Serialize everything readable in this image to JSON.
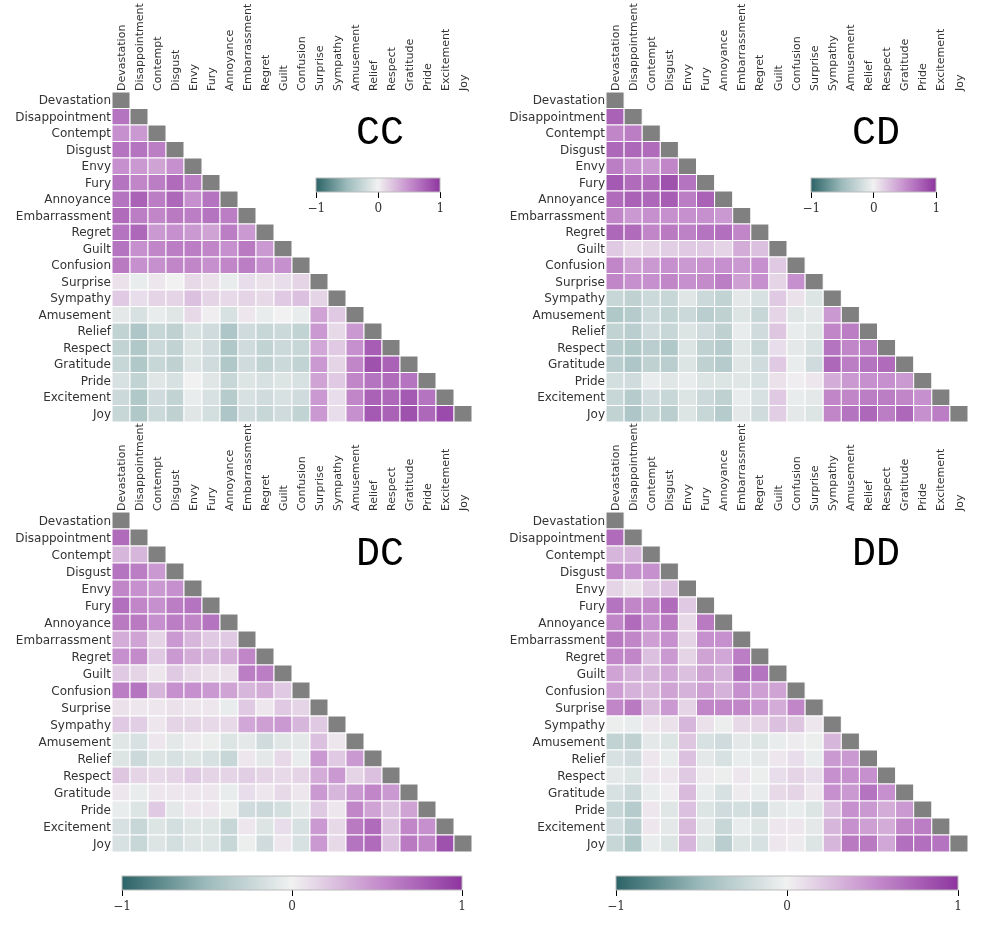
{
  "chart_data": [
    {
      "type": "heatmap",
      "title": "CC",
      "categories": [
        "Devastation",
        "Disappointment",
        "Contempt",
        "Disgust",
        "Envy",
        "Fury",
        "Annoyance",
        "Embarrassment",
        "Regret",
        "Guilt",
        "Confusion",
        "Surprise",
        "Sympathy",
        "Amusement",
        "Relief",
        "Respect",
        "Gratitude",
        "Pride",
        "Excitement",
        "Joy"
      ],
      "y_categories": [
        "Devastation",
        "Disappointment",
        "Contempt",
        "Disgust",
        "Envy",
        "Fury",
        "Annoyance",
        "Embarrassment",
        "Regret",
        "Guilt",
        "Confusion",
        "Surprise",
        "Sympathy",
        "Amusement",
        "Relief",
        "Respect",
        "Gratitude",
        "Pride",
        "Excitement",
        "Joy"
      ],
      "clim": [
        -1,
        1
      ],
      "cticks": [
        -1,
        0,
        1
      ],
      "cells": [
        [
          null,
          null,
          null,
          null,
          null,
          null,
          null,
          null,
          null,
          null,
          null,
          null,
          null,
          null,
          null,
          null,
          null,
          null,
          null,
          null
        ],
        [
          0.65,
          null,
          null,
          null,
          null,
          null,
          null,
          null,
          null,
          null,
          null,
          null,
          null,
          null,
          null,
          null,
          null,
          null,
          null,
          null
        ],
        [
          0.5,
          0.45,
          null,
          null,
          null,
          null,
          null,
          null,
          null,
          null,
          null,
          null,
          null,
          null,
          null,
          null,
          null,
          null,
          null,
          null
        ],
        [
          0.65,
          0.65,
          0.6,
          null,
          null,
          null,
          null,
          null,
          null,
          null,
          null,
          null,
          null,
          null,
          null,
          null,
          null,
          null,
          null,
          null
        ],
        [
          0.5,
          0.45,
          0.4,
          0.5,
          null,
          null,
          null,
          null,
          null,
          null,
          null,
          null,
          null,
          null,
          null,
          null,
          null,
          null,
          null,
          null
        ],
        [
          0.65,
          0.55,
          0.6,
          0.7,
          0.6,
          null,
          null,
          null,
          null,
          null,
          null,
          null,
          null,
          null,
          null,
          null,
          null,
          null,
          null,
          null
        ],
        [
          0.65,
          0.75,
          0.6,
          0.72,
          0.5,
          0.65,
          null,
          null,
          null,
          null,
          null,
          null,
          null,
          null,
          null,
          null,
          null,
          null,
          null,
          null
        ],
        [
          0.7,
          0.6,
          0.55,
          0.62,
          0.6,
          0.65,
          0.6,
          null,
          null,
          null,
          null,
          null,
          null,
          null,
          null,
          null,
          null,
          null,
          null,
          null
        ],
        [
          0.65,
          0.72,
          0.45,
          0.5,
          0.45,
          0.4,
          0.6,
          0.45,
          null,
          null,
          null,
          null,
          null,
          null,
          null,
          null,
          null,
          null,
          null,
          null
        ],
        [
          0.65,
          0.5,
          0.55,
          0.6,
          0.6,
          0.55,
          0.5,
          0.62,
          0.45,
          null,
          null,
          null,
          null,
          null,
          null,
          null,
          null,
          null,
          null,
          null
        ],
        [
          0.62,
          0.5,
          0.5,
          0.55,
          0.55,
          0.5,
          0.55,
          0.6,
          0.5,
          0.5,
          null,
          null,
          null,
          null,
          null,
          null,
          null,
          null,
          null,
          null
        ],
        [
          0.08,
          -0.05,
          0.05,
          0.0,
          0.12,
          0.08,
          -0.05,
          0.1,
          0.08,
          0.1,
          0.15,
          null,
          null,
          null,
          null,
          null,
          null,
          null,
          null,
          null
        ],
        [
          0.2,
          0.1,
          0.15,
          0.15,
          0.25,
          0.15,
          0.12,
          0.15,
          0.12,
          0.2,
          0.25,
          0.15,
          null,
          null,
          null,
          null,
          null,
          null,
          null,
          null
        ],
        [
          -0.08,
          -0.15,
          -0.05,
          -0.1,
          0.12,
          0.02,
          -0.15,
          0.05,
          -0.05,
          0.0,
          -0.05,
          0.4,
          0.2,
          null,
          null,
          null,
          null,
          null,
          null,
          null
        ],
        [
          -0.28,
          -0.4,
          -0.25,
          -0.3,
          -0.15,
          -0.2,
          -0.4,
          -0.2,
          -0.25,
          -0.22,
          -0.28,
          0.45,
          0.12,
          0.45,
          null,
          null,
          null,
          null,
          null,
          null
        ],
        [
          -0.28,
          -0.38,
          -0.22,
          -0.28,
          -0.12,
          -0.2,
          -0.38,
          -0.2,
          -0.28,
          -0.22,
          -0.25,
          0.38,
          0.2,
          0.5,
          0.78,
          null,
          null,
          null,
          null,
          null
        ],
        [
          -0.25,
          -0.38,
          -0.25,
          -0.3,
          -0.12,
          -0.2,
          -0.38,
          -0.2,
          -0.28,
          -0.22,
          -0.28,
          0.45,
          0.15,
          0.55,
          0.85,
          0.75,
          null,
          null,
          null,
          null
        ],
        [
          -0.15,
          -0.28,
          -0.1,
          -0.15,
          0.0,
          -0.1,
          -0.25,
          -0.12,
          -0.15,
          -0.12,
          -0.15,
          0.4,
          0.2,
          0.55,
          0.65,
          0.7,
          0.65,
          null,
          null,
          null
        ],
        [
          -0.22,
          -0.38,
          -0.2,
          -0.28,
          -0.05,
          -0.15,
          -0.35,
          -0.15,
          -0.2,
          -0.15,
          -0.2,
          0.45,
          0.1,
          0.55,
          0.75,
          0.72,
          0.8,
          0.65,
          null,
          null
        ],
        [
          -0.25,
          -0.38,
          -0.22,
          -0.3,
          -0.1,
          -0.18,
          -0.4,
          -0.2,
          -0.25,
          -0.2,
          -0.28,
          0.45,
          0.1,
          0.5,
          0.8,
          0.75,
          0.85,
          0.72,
          0.88,
          null
        ]
      ]
    },
    {
      "type": "heatmap",
      "title": "CD",
      "categories": [
        "Devastation",
        "Disappointment",
        "Contempt",
        "Disgust",
        "Envy",
        "Fury",
        "Annoyance",
        "Embarrassment",
        "Regret",
        "Guilt",
        "Confusion",
        "Surprise",
        "Sympathy",
        "Amusement",
        "Relief",
        "Respect",
        "Gratitude",
        "Pride",
        "Excitement",
        "Joy"
      ],
      "y_categories": [
        "Devastation",
        "Disappointment",
        "Contempt",
        "Disgust",
        "Envy",
        "Fury",
        "Annoyance",
        "Embarrassment",
        "Regret",
        "Guilt",
        "Confusion",
        "Surprise",
        "Sympathy",
        "Amusement",
        "Relief",
        "Respect",
        "Gratitude",
        "Pride",
        "Excitement",
        "Joy"
      ],
      "clim": [
        -1,
        1
      ],
      "cticks": [
        -1,
        0,
        1
      ],
      "cells": [
        [
          null,
          null,
          null,
          null,
          null,
          null,
          null,
          null,
          null,
          null,
          null,
          null,
          null,
          null,
          null,
          null,
          null,
          null,
          null,
          null
        ],
        [
          0.75,
          null,
          null,
          null,
          null,
          null,
          null,
          null,
          null,
          null,
          null,
          null,
          null,
          null,
          null,
          null,
          null,
          null,
          null,
          null
        ],
        [
          0.55,
          0.6,
          null,
          null,
          null,
          null,
          null,
          null,
          null,
          null,
          null,
          null,
          null,
          null,
          null,
          null,
          null,
          null,
          null,
          null
        ],
        [
          0.72,
          0.72,
          0.7,
          null,
          null,
          null,
          null,
          null,
          null,
          null,
          null,
          null,
          null,
          null,
          null,
          null,
          null,
          null,
          null,
          null
        ],
        [
          0.6,
          0.5,
          0.45,
          0.55,
          null,
          null,
          null,
          null,
          null,
          null,
          null,
          null,
          null,
          null,
          null,
          null,
          null,
          null,
          null,
          null
        ],
        [
          0.8,
          0.7,
          0.7,
          0.85,
          0.65,
          null,
          null,
          null,
          null,
          null,
          null,
          null,
          null,
          null,
          null,
          null,
          null,
          null,
          null,
          null
        ],
        [
          0.7,
          0.75,
          0.72,
          0.78,
          0.6,
          0.75,
          null,
          null,
          null,
          null,
          null,
          null,
          null,
          null,
          null,
          null,
          null,
          null,
          null,
          null
        ],
        [
          0.55,
          0.45,
          0.5,
          0.5,
          0.5,
          0.5,
          0.45,
          null,
          null,
          null,
          null,
          null,
          null,
          null,
          null,
          null,
          null,
          null,
          null,
          null
        ],
        [
          0.72,
          0.7,
          0.55,
          0.62,
          0.58,
          0.65,
          0.68,
          0.55,
          null,
          null,
          null,
          null,
          null,
          null,
          null,
          null,
          null,
          null,
          null,
          null
        ],
        [
          0.2,
          0.12,
          0.15,
          0.18,
          0.2,
          0.2,
          0.15,
          0.35,
          0.25,
          null,
          null,
          null,
          null,
          null,
          null,
          null,
          null,
          null,
          null,
          null
        ],
        [
          0.55,
          0.42,
          0.45,
          0.5,
          0.45,
          0.48,
          0.5,
          0.45,
          0.5,
          0.2,
          null,
          null,
          null,
          null,
          null,
          null,
          null,
          null,
          null,
          null
        ],
        [
          0.55,
          0.5,
          0.5,
          0.55,
          0.5,
          0.52,
          0.6,
          0.42,
          0.5,
          0.15,
          0.5,
          null,
          null,
          null,
          null,
          null,
          null,
          null,
          null,
          null
        ],
        [
          -0.25,
          -0.3,
          -0.22,
          -0.25,
          -0.1,
          -0.22,
          -0.28,
          -0.08,
          -0.15,
          0.2,
          0.08,
          -0.12,
          null,
          null,
          null,
          null,
          null,
          null,
          null,
          null
        ],
        [
          -0.38,
          -0.35,
          -0.22,
          -0.28,
          -0.22,
          -0.32,
          -0.3,
          -0.12,
          -0.25,
          0.15,
          -0.1,
          -0.08,
          0.45,
          null,
          null,
          null,
          null,
          null,
          null,
          null
        ],
        [
          -0.28,
          -0.32,
          -0.2,
          -0.25,
          -0.12,
          -0.2,
          -0.3,
          -0.05,
          -0.2,
          0.22,
          -0.05,
          -0.1,
          0.55,
          0.6,
          null,
          null,
          null,
          null,
          null,
          null
        ],
        [
          -0.35,
          -0.38,
          -0.32,
          -0.38,
          -0.12,
          -0.3,
          -0.35,
          -0.1,
          -0.25,
          0.1,
          -0.08,
          -0.15,
          0.65,
          0.55,
          0.6,
          null,
          null,
          null,
          null,
          null
        ],
        [
          -0.32,
          -0.4,
          -0.3,
          -0.32,
          -0.12,
          -0.3,
          -0.35,
          -0.1,
          -0.2,
          0.2,
          -0.05,
          -0.2,
          0.72,
          0.6,
          0.65,
          0.7,
          null,
          null,
          null,
          null
        ],
        [
          -0.18,
          -0.2,
          -0.05,
          -0.1,
          -0.05,
          -0.12,
          -0.12,
          -0.1,
          -0.15,
          0.08,
          0.02,
          0.05,
          0.35,
          0.45,
          0.5,
          0.5,
          0.45,
          null,
          null,
          null
        ],
        [
          -0.25,
          -0.35,
          -0.2,
          -0.25,
          -0.12,
          -0.22,
          -0.3,
          -0.05,
          -0.15,
          0.2,
          -0.05,
          -0.08,
          0.55,
          0.55,
          0.6,
          0.6,
          0.55,
          0.5,
          null,
          null
        ],
        [
          -0.28,
          -0.4,
          -0.25,
          -0.32,
          -0.12,
          -0.25,
          -0.35,
          -0.08,
          -0.2,
          0.18,
          -0.08,
          -0.12,
          0.55,
          0.65,
          0.72,
          0.6,
          0.72,
          0.5,
          0.6,
          null
        ]
      ]
    },
    {
      "type": "heatmap",
      "title": "DC",
      "categories": [
        "Devastation",
        "Disappointment",
        "Contempt",
        "Disgust",
        "Envy",
        "Fury",
        "Annoyance",
        "Embarrassment",
        "Regret",
        "Guilt",
        "Confusion",
        "Surprise",
        "Sympathy",
        "Amusement",
        "Relief",
        "Respect",
        "Gratitude",
        "Pride",
        "Excitement",
        "Joy"
      ],
      "y_categories": [
        "Devastation",
        "Disappointment",
        "Contempt",
        "Disgust",
        "Envy",
        "Fury",
        "Annoyance",
        "Embarrassment",
        "Regret",
        "Guilt",
        "Confusion",
        "Surprise",
        "Sympathy",
        "Amusement",
        "Relief",
        "Respect",
        "Gratitude",
        "Pride",
        "Excitement",
        "Joy"
      ],
      "clim": [
        -1,
        1
      ],
      "cticks": [
        -1,
        0,
        1
      ],
      "cells": [
        [
          null,
          null,
          null,
          null,
          null,
          null,
          null,
          null,
          null,
          null,
          null,
          null,
          null,
          null,
          null,
          null,
          null,
          null,
          null,
          null
        ],
        [
          0.7,
          null,
          null,
          null,
          null,
          null,
          null,
          null,
          null,
          null,
          null,
          null,
          null,
          null,
          null,
          null,
          null,
          null,
          null,
          null
        ],
        [
          0.3,
          0.3,
          null,
          null,
          null,
          null,
          null,
          null,
          null,
          null,
          null,
          null,
          null,
          null,
          null,
          null,
          null,
          null,
          null,
          null
        ],
        [
          0.65,
          0.6,
          0.45,
          null,
          null,
          null,
          null,
          null,
          null,
          null,
          null,
          null,
          null,
          null,
          null,
          null,
          null,
          null,
          null,
          null
        ],
        [
          0.55,
          0.5,
          0.45,
          0.5,
          null,
          null,
          null,
          null,
          null,
          null,
          null,
          null,
          null,
          null,
          null,
          null,
          null,
          null,
          null,
          null
        ],
        [
          0.68,
          0.55,
          0.5,
          0.6,
          0.65,
          null,
          null,
          null,
          null,
          null,
          null,
          null,
          null,
          null,
          null,
          null,
          null,
          null,
          null,
          null
        ],
        [
          0.62,
          0.62,
          0.5,
          0.6,
          0.55,
          0.65,
          null,
          null,
          null,
          null,
          null,
          null,
          null,
          null,
          null,
          null,
          null,
          null,
          null,
          null
        ],
        [
          0.35,
          0.4,
          0.15,
          0.45,
          0.3,
          0.2,
          0.2,
          null,
          null,
          null,
          null,
          null,
          null,
          null,
          null,
          null,
          null,
          null,
          null,
          null
        ],
        [
          0.5,
          0.52,
          0.2,
          0.45,
          0.35,
          0.3,
          0.35,
          0.55,
          null,
          null,
          null,
          null,
          null,
          null,
          null,
          null,
          null,
          null,
          null,
          null
        ],
        [
          0.2,
          0.15,
          0.05,
          0.2,
          0.12,
          0.08,
          0.08,
          0.6,
          0.6,
          null,
          null,
          null,
          null,
          null,
          null,
          null,
          null,
          null,
          null,
          null
        ],
        [
          0.6,
          0.65,
          0.3,
          0.5,
          0.5,
          0.45,
          0.4,
          0.3,
          0.35,
          0.2,
          null,
          null,
          null,
          null,
          null,
          null,
          null,
          null,
          null,
          null
        ],
        [
          0.08,
          0.05,
          0.05,
          0.08,
          0.05,
          0.05,
          -0.05,
          0.2,
          0.05,
          0.2,
          0.15,
          null,
          null,
          null,
          null,
          null,
          null,
          null,
          null,
          null
        ],
        [
          0.2,
          0.18,
          0.05,
          0.15,
          0.15,
          0.12,
          0.12,
          0.38,
          0.42,
          0.45,
          0.3,
          0.2,
          null,
          null,
          null,
          null,
          null,
          null,
          null,
          null
        ],
        [
          -0.1,
          -0.15,
          0.05,
          -0.08,
          0.03,
          -0.03,
          -0.12,
          -0.08,
          -0.2,
          -0.1,
          -0.08,
          0.25,
          0.05,
          null,
          null,
          null,
          null,
          null,
          null,
          null
        ],
        [
          -0.12,
          -0.22,
          -0.12,
          -0.15,
          -0.12,
          -0.15,
          -0.25,
          0.05,
          -0.08,
          0.12,
          -0.05,
          0.45,
          0.2,
          0.45,
          null,
          null,
          null,
          null,
          null,
          null
        ],
        [
          0.22,
          0.15,
          0.12,
          0.15,
          0.2,
          0.15,
          0.15,
          0.18,
          0.15,
          0.12,
          0.15,
          0.35,
          0.45,
          0.15,
          0.25,
          null,
          null,
          null,
          null,
          null
        ],
        [
          0.05,
          -0.05,
          0.05,
          0.05,
          0.05,
          0.05,
          -0.05,
          0.1,
          0.05,
          0.12,
          0.05,
          0.45,
          0.3,
          0.45,
          0.55,
          0.45,
          null,
          null,
          null,
          null
        ],
        [
          -0.05,
          -0.12,
          0.2,
          -0.08,
          0.05,
          0.05,
          -0.03,
          -0.2,
          -0.22,
          -0.18,
          -0.08,
          0.2,
          0.05,
          0.55,
          0.4,
          0.25,
          0.4,
          null,
          null,
          null
        ],
        [
          -0.15,
          -0.25,
          -0.12,
          -0.18,
          -0.12,
          -0.12,
          -0.25,
          0.05,
          -0.12,
          0.1,
          -0.15,
          0.45,
          0.12,
          0.62,
          0.7,
          0.25,
          0.55,
          0.5,
          null,
          null
        ],
        [
          -0.15,
          -0.25,
          -0.12,
          -0.18,
          -0.12,
          -0.12,
          -0.25,
          -0.03,
          -0.2,
          0.05,
          -0.15,
          0.45,
          0.12,
          0.65,
          0.7,
          0.25,
          0.62,
          0.55,
          0.85,
          null
        ]
      ]
    },
    {
      "type": "heatmap",
      "title": "DD",
      "categories": [
        "Devastation",
        "Disappointment",
        "Contempt",
        "Disgust",
        "Envy",
        "Fury",
        "Annoyance",
        "Embarrassment",
        "Regret",
        "Guilt",
        "Confusion",
        "Surprise",
        "Sympathy",
        "Amusement",
        "Relief",
        "Respect",
        "Gratitude",
        "Pride",
        "Excitement",
        "Joy"
      ],
      "y_categories": [
        "Devastation",
        "Disappointment",
        "Contempt",
        "Disgust",
        "Envy",
        "Fury",
        "Annoyance",
        "Embarrassment",
        "Regret",
        "Guilt",
        "Confusion",
        "Surprise",
        "Sympathy",
        "Amusement",
        "Relief",
        "Respect",
        "Gratitude",
        "Pride",
        "Excitement",
        "Joy"
      ],
      "clim": [
        -1,
        1
      ],
      "cticks": [
        -1,
        0,
        1
      ],
      "cells": [
        [
          null,
          null,
          null,
          null,
          null,
          null,
          null,
          null,
          null,
          null,
          null,
          null,
          null,
          null,
          null,
          null,
          null,
          null,
          null,
          null
        ],
        [
          0.7,
          null,
          null,
          null,
          null,
          null,
          null,
          null,
          null,
          null,
          null,
          null,
          null,
          null,
          null,
          null,
          null,
          null,
          null,
          null
        ],
        [
          0.3,
          0.3,
          null,
          null,
          null,
          null,
          null,
          null,
          null,
          null,
          null,
          null,
          null,
          null,
          null,
          null,
          null,
          null,
          null,
          null
        ],
        [
          0.55,
          0.5,
          0.5,
          null,
          null,
          null,
          null,
          null,
          null,
          null,
          null,
          null,
          null,
          null,
          null,
          null,
          null,
          null,
          null,
          null
        ],
        [
          0.15,
          0.08,
          0.2,
          0.25,
          null,
          null,
          null,
          null,
          null,
          null,
          null,
          null,
          null,
          null,
          null,
          null,
          null,
          null,
          null,
          null
        ],
        [
          0.65,
          0.55,
          0.55,
          0.7,
          0.2,
          null,
          null,
          null,
          null,
          null,
          null,
          null,
          null,
          null,
          null,
          null,
          null,
          null,
          null,
          null
        ],
        [
          0.55,
          0.7,
          0.5,
          0.62,
          0.12,
          0.62,
          null,
          null,
          null,
          null,
          null,
          null,
          null,
          null,
          null,
          null,
          null,
          null,
          null,
          null
        ],
        [
          0.62,
          0.55,
          0.42,
          0.5,
          0.15,
          0.5,
          0.5,
          null,
          null,
          null,
          null,
          null,
          null,
          null,
          null,
          null,
          null,
          null,
          null,
          null
        ],
        [
          0.55,
          0.55,
          0.25,
          0.45,
          0.15,
          0.4,
          0.38,
          0.6,
          null,
          null,
          null,
          null,
          null,
          null,
          null,
          null,
          null,
          null,
          null,
          null
        ],
        [
          0.4,
          0.32,
          0.3,
          0.38,
          0.25,
          0.4,
          0.32,
          0.65,
          0.65,
          null,
          null,
          null,
          null,
          null,
          null,
          null,
          null,
          null,
          null,
          null
        ],
        [
          0.42,
          0.32,
          0.28,
          0.4,
          0.32,
          0.42,
          0.32,
          0.5,
          0.42,
          0.4,
          null,
          null,
          null,
          null,
          null,
          null,
          null,
          null,
          null,
          null
        ],
        [
          0.55,
          0.62,
          0.28,
          0.45,
          0.15,
          0.55,
          0.55,
          0.55,
          0.45,
          0.35,
          0.55,
          null,
          null,
          null,
          null,
          null,
          null,
          null,
          null,
          null
        ],
        [
          -0.03,
          -0.05,
          0.05,
          0.08,
          0.3,
          0.08,
          -0.03,
          0.12,
          0.15,
          0.25,
          0.22,
          0.05,
          null,
          null,
          null,
          null,
          null,
          null,
          null,
          null
        ],
        [
          -0.28,
          -0.3,
          -0.08,
          -0.12,
          0.22,
          -0.15,
          -0.2,
          -0.08,
          -0.12,
          -0.05,
          0.03,
          -0.03,
          0.3,
          null,
          null,
          null,
          null,
          null,
          null,
          null
        ],
        [
          -0.15,
          -0.2,
          0.05,
          -0.05,
          0.25,
          -0.08,
          -0.15,
          -0.05,
          -0.08,
          0.05,
          0.1,
          -0.05,
          0.45,
          0.45,
          null,
          null,
          null,
          null,
          null,
          null
        ],
        [
          -0.08,
          -0.12,
          0.05,
          0.05,
          0.2,
          0.03,
          -0.03,
          0.05,
          -0.03,
          0.1,
          0.15,
          0.1,
          0.5,
          0.5,
          0.5,
          null,
          null,
          null,
          null,
          null
        ],
        [
          -0.15,
          -0.22,
          -0.05,
          0.02,
          0.28,
          -0.05,
          -0.15,
          0.03,
          -0.05,
          0.12,
          0.15,
          0.05,
          0.5,
          0.45,
          0.65,
          0.5,
          null,
          null,
          null,
          null
        ],
        [
          -0.25,
          -0.35,
          0.05,
          -0.1,
          0.25,
          -0.12,
          -0.2,
          -0.18,
          -0.22,
          -0.08,
          -0.05,
          -0.12,
          0.25,
          0.5,
          0.45,
          0.35,
          0.45,
          null,
          null,
          null
        ],
        [
          -0.2,
          -0.32,
          0.05,
          -0.08,
          0.28,
          -0.08,
          -0.25,
          -0.05,
          -0.12,
          0.05,
          0.05,
          -0.08,
          0.3,
          0.5,
          0.42,
          0.35,
          0.55,
          0.6,
          null,
          null
        ],
        [
          -0.25,
          -0.38,
          -0.05,
          -0.12,
          0.3,
          -0.12,
          -0.32,
          -0.12,
          -0.15,
          0.05,
          0.03,
          -0.12,
          0.3,
          0.62,
          0.62,
          0.38,
          0.68,
          0.68,
          0.65,
          null
        ]
      ]
    }
  ]
}
